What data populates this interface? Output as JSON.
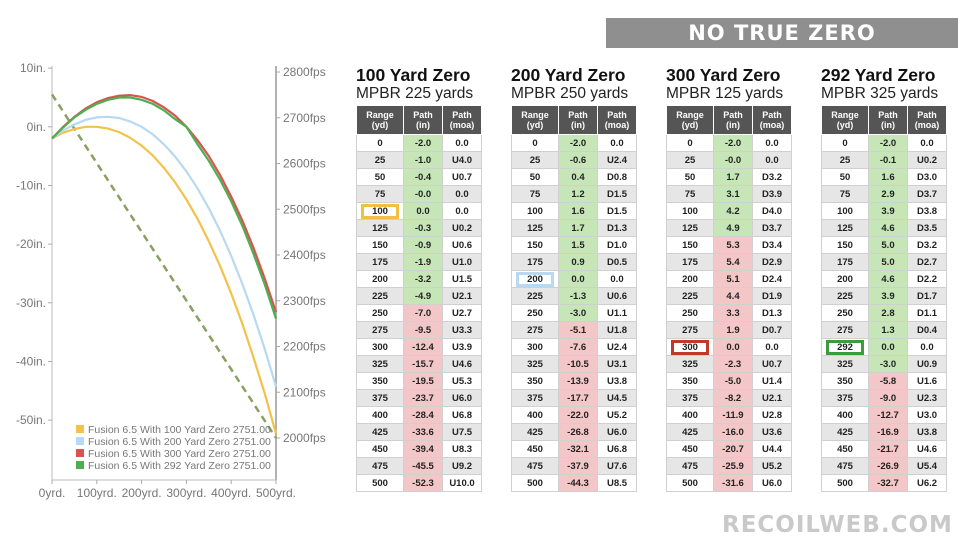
{
  "banner": "NO TRUE ZERO",
  "watermark": "RECOILWEB.COM",
  "chart_data": {
    "type": "line",
    "x": [
      0,
      25,
      50,
      75,
      100,
      125,
      150,
      175,
      200,
      225,
      250,
      275,
      300,
      325,
      350,
      375,
      400,
      425,
      450,
      475,
      500
    ],
    "x_ticks": [
      "0yrd.",
      "100yrd.",
      "200yrd.",
      "300yrd.",
      "400yrd.",
      "500yrd."
    ],
    "x_tick_values": [
      0,
      100,
      200,
      300,
      400,
      500
    ],
    "left_ticks": [
      "10in.",
      "0in.",
      "-10in.",
      "-20in.",
      "-30in.",
      "-40in.",
      "-50in."
    ],
    "left_tick_values": [
      10,
      0,
      -10,
      -20,
      -30,
      -40,
      -50
    ],
    "right_ticks": [
      "2800fps",
      "2700fps",
      "2600fps",
      "2500fps",
      "2400fps",
      "2300fps",
      "2200fps",
      "2100fps",
      "2000fps"
    ],
    "right_tick_values": [
      2800,
      2700,
      2600,
      2500,
      2400,
      2300,
      2200,
      2100,
      2000
    ],
    "xlim": [
      0,
      500
    ],
    "ylim": [
      -52,
      10
    ],
    "y2lim": [
      2000,
      2800
    ],
    "legend_position": "bottom-left",
    "series": [
      {
        "name": "Fusion 6.5 With 100 Yard Zero 2751.00",
        "color": "#f2c24a",
        "values": [
          -2.0,
          -1.0,
          -0.4,
          -0.0,
          0.0,
          -0.3,
          -0.9,
          -1.9,
          -3.2,
          -4.9,
          -7.0,
          -9.5,
          -12.4,
          -15.7,
          -19.5,
          -23.7,
          -28.4,
          -33.6,
          -39.4,
          -45.5,
          -52.3
        ]
      },
      {
        "name": "Fusion 6.5 With 200 Yard Zero 2751.00",
        "color": "#b7d9f2",
        "values": [
          -2.0,
          -0.6,
          0.4,
          1.2,
          1.6,
          1.7,
          1.5,
          0.9,
          0.0,
          -1.3,
          -3.0,
          -5.1,
          -7.6,
          -10.5,
          -13.9,
          -17.7,
          -22.0,
          -26.8,
          -32.1,
          -37.9,
          -44.3
        ]
      },
      {
        "name": "Fusion 6.5 With 300 Yard Zero 2751.00",
        "color": "#d9534f",
        "values": [
          -2.0,
          -0.0,
          1.7,
          3.1,
          4.2,
          4.9,
          5.3,
          5.4,
          5.1,
          4.4,
          3.3,
          1.9,
          0.0,
          -2.3,
          -5.0,
          -8.2,
          -11.9,
          -16.0,
          -20.7,
          -25.9,
          -31.6
        ]
      },
      {
        "name": "Fusion 6.5 With 292 Yard Zero 2751.00",
        "color": "#4caf50",
        "values": [
          -2.0,
          -0.1,
          1.6,
          2.9,
          3.9,
          4.6,
          5.0,
          5.0,
          4.6,
          3.9,
          2.8,
          1.3,
          0.0,
          -3.0,
          -5.8,
          -9.0,
          -12.7,
          -16.9,
          -21.7,
          -26.9,
          -32.7
        ]
      }
    ],
    "velocity_series": {
      "color": "#8aa060",
      "values_fps": [
        2751,
        2000
      ]
    }
  },
  "tables": [
    {
      "title": "100 Yard Zero",
      "subtitle": "MPBR 225 yards",
      "zero_range": "100",
      "zero_color": "#f0c040",
      "headers": [
        "Range (yd)",
        "Path (in)",
        "Path (moa)"
      ],
      "rows": [
        [
          "0",
          "-2.0",
          "0.0"
        ],
        [
          "25",
          "-1.0",
          "U4.0"
        ],
        [
          "50",
          "-0.4",
          "U0.7"
        ],
        [
          "75",
          "-0.0",
          "0.0"
        ],
        [
          "100",
          "0.0",
          "0.0"
        ],
        [
          "125",
          "-0.3",
          "U0.2"
        ],
        [
          "150",
          "-0.9",
          "U0.6"
        ],
        [
          "175",
          "-1.9",
          "U1.0"
        ],
        [
          "200",
          "-3.2",
          "U1.5"
        ],
        [
          "225",
          "-4.9",
          "U2.1"
        ],
        [
          "250",
          "-7.0",
          "U2.7"
        ],
        [
          "275",
          "-9.5",
          "U3.3"
        ],
        [
          "300",
          "-12.4",
          "U3.9"
        ],
        [
          "325",
          "-15.7",
          "U4.6"
        ],
        [
          "350",
          "-19.5",
          "U5.3"
        ],
        [
          "375",
          "-23.7",
          "U6.0"
        ],
        [
          "400",
          "-28.4",
          "U6.8"
        ],
        [
          "425",
          "-33.6",
          "U7.5"
        ],
        [
          "450",
          "-39.4",
          "U8.3"
        ],
        [
          "475",
          "-45.5",
          "U9.2"
        ],
        [
          "500",
          "-52.3",
          "U10.0"
        ]
      ],
      "path_tint": [
        "pos",
        "pos",
        "pos",
        "pos",
        "pos",
        "pos",
        "pos",
        "pos",
        "pos",
        "pos",
        "neg",
        "neg",
        "neg",
        "neg",
        "neg",
        "neg",
        "neg",
        "neg",
        "neg",
        "neg",
        "neg"
      ]
    },
    {
      "title": "200 Yard Zero",
      "subtitle": "MPBR 250 yards",
      "zero_range": "200",
      "zero_color": "#b7d9f2",
      "headers": [
        "Range (yd)",
        "Path (in)",
        "Path (moa)"
      ],
      "rows": [
        [
          "0",
          "-2.0",
          "0.0"
        ],
        [
          "25",
          "-0.6",
          "U2.4"
        ],
        [
          "50",
          "0.4",
          "D0.8"
        ],
        [
          "75",
          "1.2",
          "D1.5"
        ],
        [
          "100",
          "1.6",
          "D1.5"
        ],
        [
          "125",
          "1.7",
          "D1.3"
        ],
        [
          "150",
          "1.5",
          "D1.0"
        ],
        [
          "175",
          "0.9",
          "D0.5"
        ],
        [
          "200",
          "0.0",
          "0.0"
        ],
        [
          "225",
          "-1.3",
          "U0.6"
        ],
        [
          "250",
          "-3.0",
          "U1.1"
        ],
        [
          "275",
          "-5.1",
          "U1.8"
        ],
        [
          "300",
          "-7.6",
          "U2.4"
        ],
        [
          "325",
          "-10.5",
          "U3.1"
        ],
        [
          "350",
          "-13.9",
          "U3.8"
        ],
        [
          "375",
          "-17.7",
          "U4.5"
        ],
        [
          "400",
          "-22.0",
          "U5.2"
        ],
        [
          "425",
          "-26.8",
          "U6.0"
        ],
        [
          "450",
          "-32.1",
          "U6.8"
        ],
        [
          "475",
          "-37.9",
          "U7.6"
        ],
        [
          "500",
          "-44.3",
          "U8.5"
        ]
      ],
      "path_tint": [
        "pos",
        "pos",
        "pos",
        "pos",
        "pos",
        "pos",
        "pos",
        "pos",
        "pos",
        "pos",
        "pos",
        "neg",
        "neg",
        "neg",
        "neg",
        "neg",
        "neg",
        "neg",
        "neg",
        "neg",
        "neg"
      ]
    },
    {
      "title": "300 Yard Zero",
      "subtitle": "MPBR 125 yards",
      "zero_range": "300",
      "zero_color": "#c0392b",
      "headers": [
        "Range (yd)",
        "Path (in)",
        "Path (moa)"
      ],
      "rows": [
        [
          "0",
          "-2.0",
          "0.0"
        ],
        [
          "25",
          "-0.0",
          "0.0"
        ],
        [
          "50",
          "1.7",
          "D3.2"
        ],
        [
          "75",
          "3.1",
          "D3.9"
        ],
        [
          "100",
          "4.2",
          "D4.0"
        ],
        [
          "125",
          "4.9",
          "D3.7"
        ],
        [
          "150",
          "5.3",
          "D3.4"
        ],
        [
          "175",
          "5.4",
          "D2.9"
        ],
        [
          "200",
          "5.1",
          "D2.4"
        ],
        [
          "225",
          "4.4",
          "D1.9"
        ],
        [
          "250",
          "3.3",
          "D1.3"
        ],
        [
          "275",
          "1.9",
          "D0.7"
        ],
        [
          "300",
          "0.0",
          "0.0"
        ],
        [
          "325",
          "-2.3",
          "U0.7"
        ],
        [
          "350",
          "-5.0",
          "U1.4"
        ],
        [
          "375",
          "-8.2",
          "U2.1"
        ],
        [
          "400",
          "-11.9",
          "U2.8"
        ],
        [
          "425",
          "-16.0",
          "U3.6"
        ],
        [
          "450",
          "-20.7",
          "U4.4"
        ],
        [
          "475",
          "-25.9",
          "U5.2"
        ],
        [
          "500",
          "-31.6",
          "U6.0"
        ]
      ],
      "path_tint": [
        "pos",
        "pos",
        "pos",
        "pos",
        "pos",
        "pos",
        "neg",
        "neg",
        "neg",
        "neg",
        "neg",
        "neg",
        "neg",
        "neg",
        "neg",
        "neg",
        "neg",
        "neg",
        "neg",
        "neg",
        "neg"
      ]
    },
    {
      "title": "292 Yard Zero",
      "subtitle": "MPBR 325 yards",
      "zero_range": "292",
      "zero_color": "#3d9a3d",
      "headers": [
        "Range (yd)",
        "Path (in)",
        "Path (moa)"
      ],
      "rows": [
        [
          "0",
          "-2.0",
          "0.0"
        ],
        [
          "25",
          "-0.1",
          "U0.2"
        ],
        [
          "50",
          "1.6",
          "D3.0"
        ],
        [
          "75",
          "2.9",
          "D3.7"
        ],
        [
          "100",
          "3.9",
          "D3.8"
        ],
        [
          "125",
          "4.6",
          "D3.5"
        ],
        [
          "150",
          "5.0",
          "D3.2"
        ],
        [
          "175",
          "5.0",
          "D2.7"
        ],
        [
          "200",
          "4.6",
          "D2.2"
        ],
        [
          "225",
          "3.9",
          "D1.7"
        ],
        [
          "250",
          "2.8",
          "D1.1"
        ],
        [
          "275",
          "1.3",
          "D0.4"
        ],
        [
          "292",
          "0.0",
          "0.0"
        ],
        [
          "325",
          "-3.0",
          "U0.9"
        ],
        [
          "350",
          "-5.8",
          "U1.6"
        ],
        [
          "375",
          "-9.0",
          "U2.3"
        ],
        [
          "400",
          "-12.7",
          "U3.0"
        ],
        [
          "425",
          "-16.9",
          "U3.8"
        ],
        [
          "450",
          "-21.7",
          "U4.6"
        ],
        [
          "475",
          "-26.9",
          "U5.4"
        ],
        [
          "500",
          "-32.7",
          "U6.2"
        ]
      ],
      "path_tint": [
        "pos",
        "pos",
        "pos",
        "pos",
        "pos",
        "pos",
        "pos",
        "pos",
        "pos",
        "pos",
        "pos",
        "pos",
        "pos",
        "pos",
        "neg",
        "neg",
        "neg",
        "neg",
        "neg",
        "neg",
        "neg"
      ]
    }
  ]
}
